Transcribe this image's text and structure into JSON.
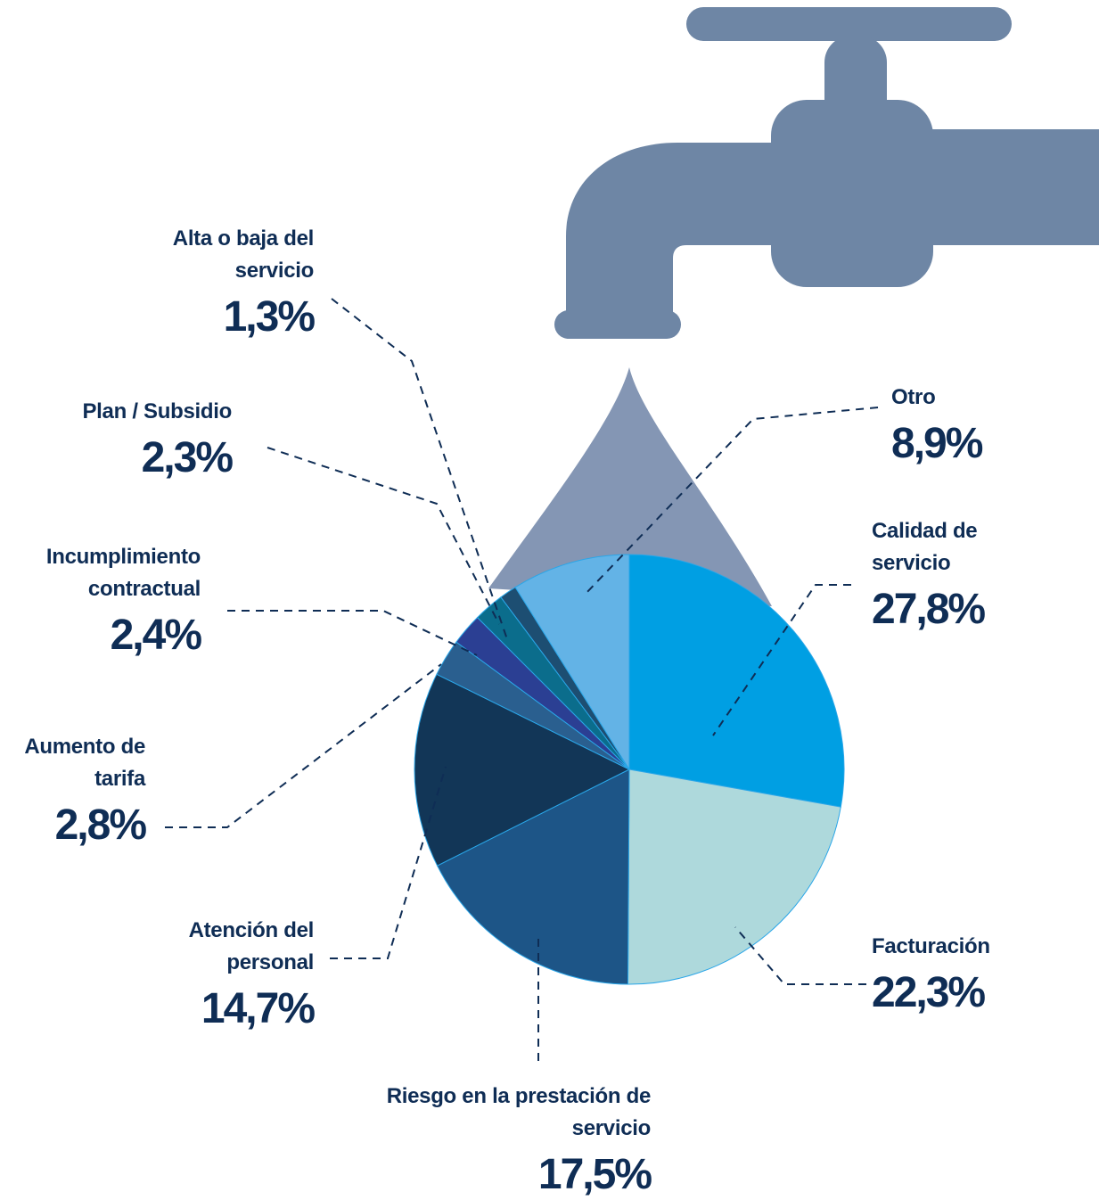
{
  "chart_data": {
    "type": "pie",
    "categories": [
      "Calidad de servicio",
      "Facturación",
      "Riesgo en la prestación de servicio",
      "Atención del personal",
      "Aumento de tarifa",
      "Incumplimiento contractual",
      "Plan / Subsidio",
      "Alta o baja del servicio",
      "Otro"
    ],
    "values": [
      27.8,
      22.3,
      17.5,
      14.7,
      2.8,
      2.4,
      2.3,
      1.3,
      8.9
    ],
    "value_labels": [
      "27,8%",
      "22,3%",
      "17,5%",
      "14,7%",
      "2,8%",
      "2,4%",
      "2,3%",
      "1,3%",
      "8,9%"
    ],
    "colors": [
      "#009fe3",
      "#aed9dc",
      "#1d5587",
      "#123657",
      "#2a5f8f",
      "#2b3f93",
      "#0b6d8c",
      "#1d4e72",
      "#63b3e6"
    ]
  }
}
